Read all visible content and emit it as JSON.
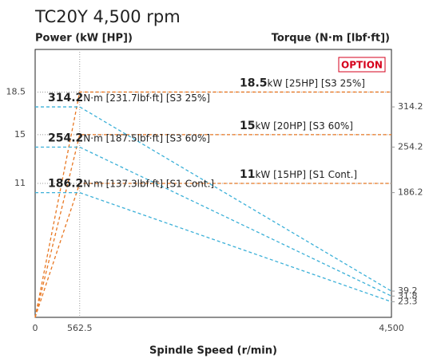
{
  "chart_data": {
    "type": "line",
    "title": "TC20Y 4,500 rpm",
    "ylabel": "Power (kW [HP])",
    "y2label": "Torque (N·m [lbf·ft])",
    "xlabel": "Spindle Speed (r/min)",
    "badge": "OPTION",
    "x": [
      0,
      562.5,
      4500
    ],
    "xlim": [
      0,
      4500
    ],
    "xticks": [
      0,
      562.5,
      {
        "value": 4500,
        "label": "4,500"
      }
    ],
    "ylim": [
      0,
      22
    ],
    "yticks": [
      11,
      15,
      18.5
    ],
    "y2lim": [
      0,
      400
    ],
    "y2ticks": [
      314.2,
      254.2,
      186.2,
      39.2,
      31.8,
      23.3
    ],
    "grid": true,
    "series": [
      {
        "name": "kW [25HP] [S3 25%]",
        "color": "#e87722",
        "values": [
          0,
          18.5,
          18.5
        ]
      },
      {
        "name": "kW [20HP] [S3 60%]",
        "color": "#e87722",
        "values": [
          0,
          15,
          15
        ]
      },
      {
        "name": "kW [15HP] [S1 Cont.]",
        "color": "#e87722",
        "values": [
          0,
          11,
          11
        ]
      },
      {
        "name": "N·m [231.7lbf·ft] [S3 25%]",
        "color": "#3bb0d8",
        "axis": "y2",
        "values": [
          314.2,
          314.2,
          39.2
        ]
      },
      {
        "name": "N·m [187.5lbf·ft] [S3 60%]",
        "color": "#3bb0d8",
        "axis": "y2",
        "values": [
          254.2,
          254.2,
          31.8
        ]
      },
      {
        "name": "N·m [137.3lbf·ft] [S1 Cont.]",
        "color": "#3bb0d8",
        "axis": "y2",
        "values": [
          186.2,
          186.2,
          23.3
        ]
      }
    ]
  }
}
